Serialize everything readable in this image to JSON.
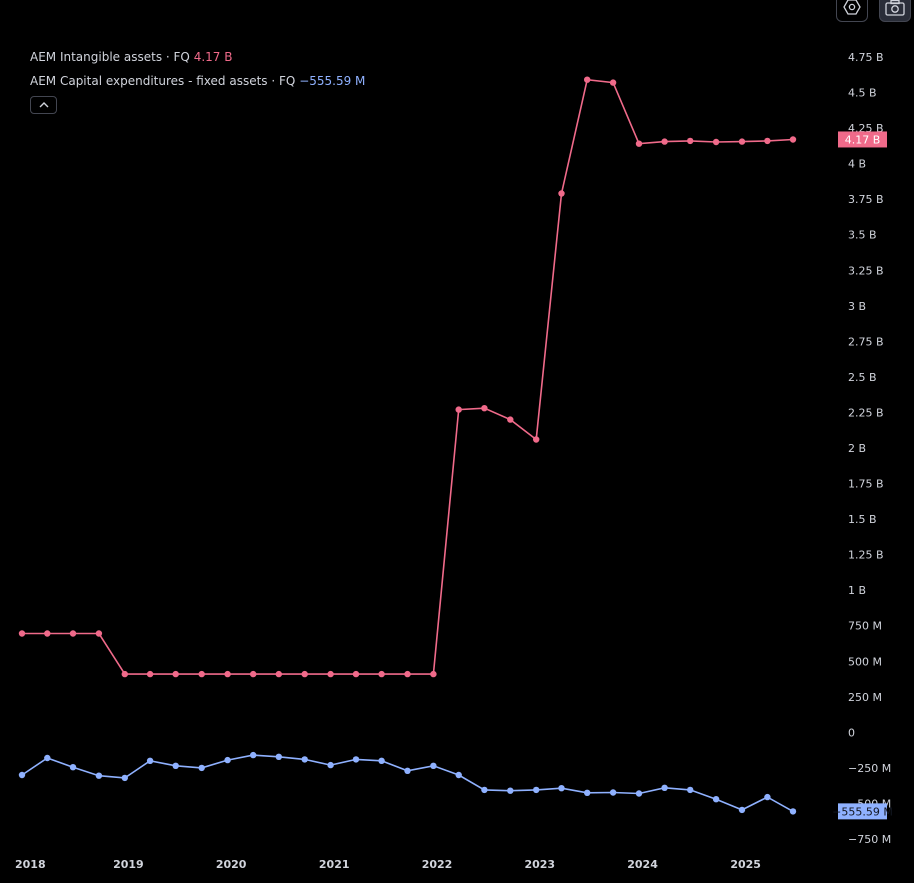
{
  "toolbar": {
    "settings_icon": "hexagon-settings-icon",
    "screenshot_icon": "camera-icon"
  },
  "legend": {
    "series1_label": "AEM Intangible assets · FQ",
    "series1_value": "4.17 B",
    "series2_label": "AEM Capital expenditures - fixed assets · FQ",
    "series2_value": "−555.59 M",
    "collapse_icon": "chevron-up-icon"
  },
  "colors": {
    "background": "#000000",
    "series1": "#f06a8a",
    "series2": "#8fb1ff",
    "text": "#d1d4dc"
  },
  "chart_data": {
    "type": "line",
    "x_labels": [
      "2018",
      "2019",
      "2020",
      "2021",
      "2022",
      "2023",
      "2024",
      "2025"
    ],
    "y_ticks": [
      "4.75 B",
      "4.5 B",
      "4.25 B",
      "4 B",
      "3.75 B",
      "3.5 B",
      "3.25 B",
      "3 B",
      "2.75 B",
      "2.5 B",
      "2.25 B",
      "2 B",
      "1.75 B",
      "1.5 B",
      "1.25 B",
      "1 B",
      "750 M",
      "500 M",
      "250 M",
      "0",
      "−250 M",
      "−500 M",
      "−750 M"
    ],
    "y_tick_values": [
      4750,
      4500,
      4250,
      4000,
      3750,
      3500,
      3250,
      3000,
      2750,
      2500,
      2250,
      2000,
      1750,
      1500,
      1250,
      1000,
      750,
      500,
      250,
      0,
      -250,
      -500,
      -750
    ],
    "ylim": [
      -750,
      4750
    ],
    "y_unit": "M",
    "last_value_labels": [
      "4.17 B",
      "−555.59 M"
    ],
    "series": [
      {
        "name": "AEM Intangible assets · FQ",
        "color": "#f06a8a",
        "x": [
          "2017-12-31",
          "2018-03-31",
          "2018-06-30",
          "2018-09-30",
          "2018-12-31",
          "2019-03-31",
          "2019-06-30",
          "2019-09-30",
          "2019-12-31",
          "2020-03-31",
          "2020-06-30",
          "2020-09-30",
          "2020-12-31",
          "2021-03-31",
          "2021-06-30",
          "2021-09-30",
          "2021-12-31",
          "2022-03-31",
          "2022-06-30",
          "2022-09-30",
          "2022-12-31",
          "2023-03-31",
          "2023-06-30",
          "2023-09-30",
          "2023-12-31",
          "2024-03-31",
          "2024-06-30",
          "2024-09-30",
          "2024-12-31",
          "2025-03-31",
          "2025-06-30"
        ],
        "values": [
          695,
          695,
          695,
          695,
          410,
          410,
          410,
          410,
          410,
          410,
          410,
          410,
          410,
          410,
          410,
          410,
          410,
          2270,
          2280,
          2200,
          2060,
          3790,
          4590,
          4570,
          4140,
          4155,
          4160,
          4152,
          4155,
          4160,
          4170
        ]
      },
      {
        "name": "AEM Capital expenditures - fixed assets · FQ",
        "color": "#8fb1ff",
        "x": [
          "2017-12-31",
          "2018-03-31",
          "2018-06-30",
          "2018-09-30",
          "2018-12-31",
          "2019-03-31",
          "2019-06-30",
          "2019-09-30",
          "2019-12-31",
          "2020-03-31",
          "2020-06-30",
          "2020-09-30",
          "2020-12-31",
          "2021-03-31",
          "2021-06-30",
          "2021-09-30",
          "2021-12-31",
          "2022-03-31",
          "2022-06-30",
          "2022-09-30",
          "2022-12-31",
          "2023-03-31",
          "2023-06-30",
          "2023-09-30",
          "2023-12-31",
          "2024-03-31",
          "2024-06-30",
          "2024-09-30",
          "2024-12-31",
          "2025-03-31",
          "2025-06-30"
        ],
        "values": [
          -300,
          -180,
          -245,
          -305,
          -320,
          -200,
          -235,
          -250,
          -195,
          -160,
          -172,
          -190,
          -230,
          -190,
          -200,
          -270,
          -235,
          -300,
          -405,
          -410,
          -405,
          -393,
          -425,
          -423,
          -430,
          -390,
          -405,
          -470,
          -545,
          -455,
          -555.59
        ]
      }
    ]
  }
}
